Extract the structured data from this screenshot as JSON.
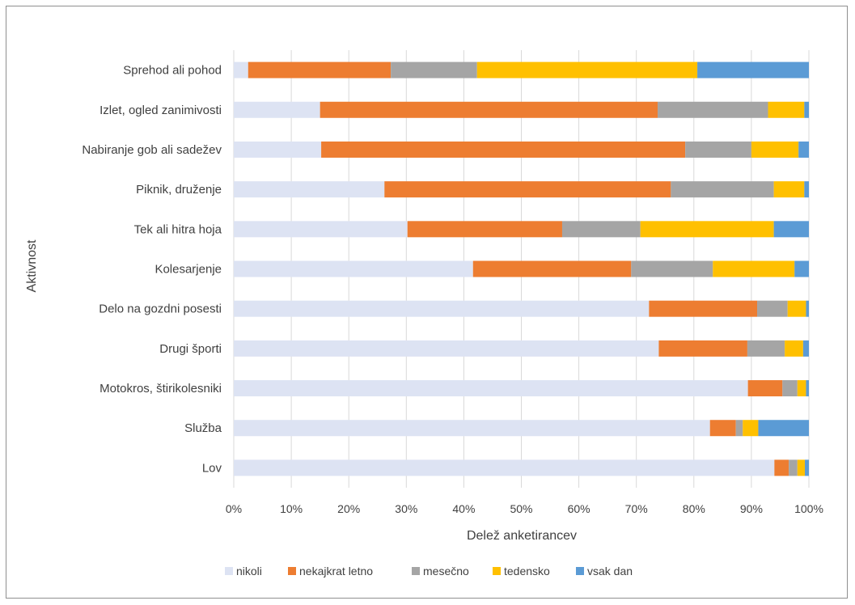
{
  "chart_data": {
    "type": "bar",
    "orientation": "horizontal",
    "stacked": true,
    "title": "",
    "xlabel": "Delež anketirancev",
    "ylabel": "Aktivnost",
    "xlim": [
      0,
      100
    ],
    "x_ticks": [
      "0%",
      "10%",
      "20%",
      "30%",
      "40%",
      "50%",
      "60%",
      "70%",
      "80%",
      "90%",
      "100%"
    ],
    "grid": true,
    "legend_position": "bottom",
    "categories": [
      "Sprehod ali pohod",
      "Izlet, ogled zanimivosti",
      "Nabiranje gob ali sadežev",
      "Piknik, druženje",
      "Tek ali hitra hoja",
      "Kolesarjenje",
      "Delo na gozdni posesti",
      "Drugi športi",
      "Motokros, štirikolesniki",
      "Služba",
      "Lov"
    ],
    "series": [
      {
        "name": "nikoli",
        "color": "#dde3f3",
        "values": [
          2.5,
          15,
          15.2,
          26.2,
          30.2,
          41.6,
          72.2,
          73.9,
          89.4,
          82.8,
          94.0
        ]
      },
      {
        "name": "nekajkrat letno",
        "color": "#ed7d31",
        "values": [
          24.8,
          58.7,
          63.3,
          49.8,
          26.9,
          27.5,
          18.8,
          15.4,
          6.0,
          4.5,
          2.5
        ]
      },
      {
        "name": "mesečno",
        "color": "#a5a5a5",
        "values": [
          15,
          19.2,
          11.5,
          17.9,
          13.6,
          14.2,
          5.3,
          6.5,
          2.6,
          1.2,
          1.5
        ]
      },
      {
        "name": "tedensko",
        "color": "#ffc000",
        "values": [
          38.3,
          6.3,
          8.2,
          5.3,
          23.2,
          14.2,
          3.2,
          3.2,
          1.5,
          2.7,
          1.3
        ]
      },
      {
        "name": "vsak dan",
        "color": "#5b9bd5",
        "values": [
          19.4,
          0.8,
          1.8,
          0.8,
          6.1,
          2.5,
          0.5,
          1.0,
          0.5,
          8.8,
          0.7
        ]
      }
    ]
  }
}
